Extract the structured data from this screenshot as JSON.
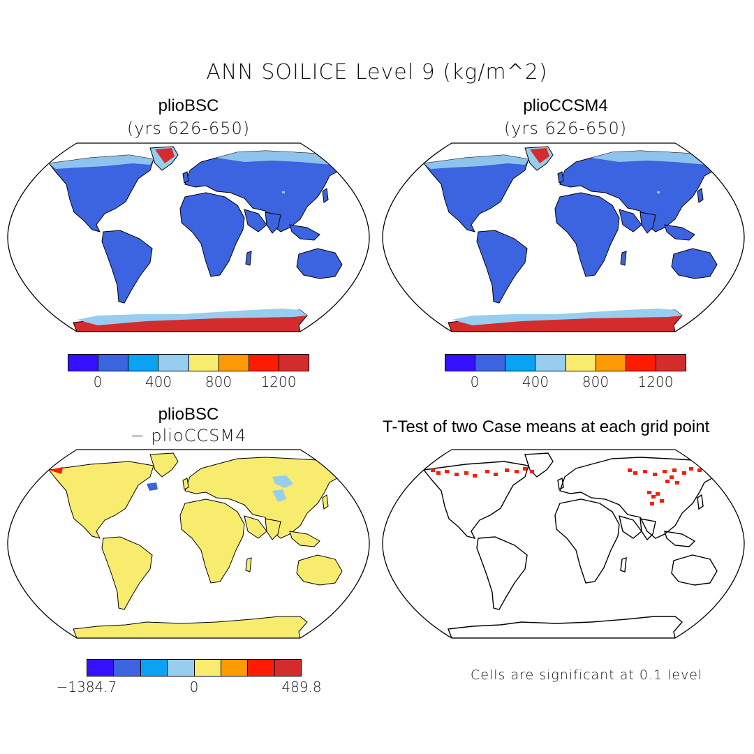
{
  "figure": {
    "title": "ANN SOILICE Level 9 (kg/m^2)",
    "panels": [
      {
        "id": "p1",
        "title": "plioBSC",
        "subtitle": "(yrs 626-650)",
        "fill": "data"
      },
      {
        "id": "p2",
        "title": "plioCCSM4",
        "subtitle": "(yrs 626-650)",
        "fill": "data"
      },
      {
        "id": "p3",
        "title": "plioBSC",
        "subtitle": "− plioCCSM4",
        "fill": "diff"
      },
      {
        "id": "p4",
        "title": "T-Test of two Case means at each grid point",
        "fill": "ttest"
      }
    ],
    "colorbar_top": {
      "colors": [
        "#3311ff",
        "#3c64e0",
        "#0aa2f5",
        "#97cdee",
        "#f8ec6e",
        "#fd9a04",
        "#fd1b02",
        "#d42c2c"
      ],
      "ticks": [
        "0",
        "400",
        "800",
        "1200"
      ]
    },
    "colorbar_diff": {
      "colors": [
        "#3311ff",
        "#3c64e0",
        "#0aa2f5",
        "#97cdee",
        "#f8ec6e",
        "#fd9a04",
        "#fd1b02",
        "#d42c2c"
      ],
      "ticks": [
        "−1384.7",
        "0",
        "489.8"
      ]
    },
    "significance_note": "Cells are significant at 0.1 level",
    "map_colors": {
      "land": "#3c64e0",
      "ice": "#d42c2c",
      "light": "#97cdee",
      "diff_land": "#f8ec6e",
      "sig": "#fd1b02",
      "outline": "#000000"
    }
  }
}
